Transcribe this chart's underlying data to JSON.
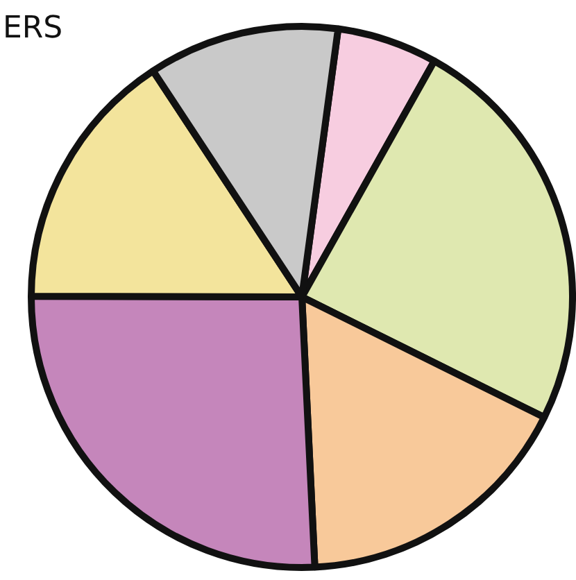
{
  "chart_data": {
    "type": "pie",
    "title": "ERS",
    "categories": [
      null,
      null,
      null,
      null,
      null,
      null
    ],
    "values": [
      6.0,
      24.2,
      16.9,
      25.8,
      15.7,
      11.4
    ],
    "colors": [
      "#f7cde0",
      "#dfe8b0",
      "#f8c99a",
      "#c586bb",
      "#f3e49c",
      "#c9c9c9"
    ],
    "legend": false
  }
}
